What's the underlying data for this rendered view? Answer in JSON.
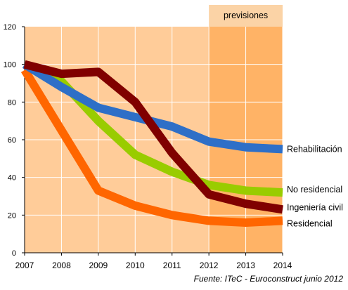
{
  "chart_data": {
    "type": "line",
    "x": [
      2007,
      2008,
      2009,
      2010,
      2011,
      2012,
      2013,
      2014
    ],
    "xticks": [
      "2007",
      "2008",
      "2009",
      "2010",
      "2011",
      "2012",
      "2013",
      "2014"
    ],
    "yticks": [
      "0",
      "20",
      "40",
      "60",
      "80",
      "100",
      "120"
    ],
    "ylim": [
      0,
      120
    ],
    "grid": true,
    "forecast": {
      "label": "previsiones",
      "from": 2012,
      "to": 2014
    },
    "source": "Fuente: ITeC - Euroconstruct junio 2012",
    "series": [
      {
        "name": "Rehabilitación",
        "color": "#2e6fc7",
        "values": [
          100,
          88,
          77,
          72,
          67,
          59,
          56,
          55
        ]
      },
      {
        "name": "No residencial",
        "color": "#99cc00",
        "values": [
          100,
          91,
          70,
          52,
          43,
          36,
          33,
          32
        ]
      },
      {
        "name": "Ingeniería civil",
        "color": "#800000",
        "values": [
          100,
          95,
          96,
          80,
          53,
          31,
          26,
          23
        ]
      },
      {
        "name": "Residencial",
        "color": "#ff6600",
        "values": [
          97,
          65,
          33,
          25,
          20,
          17,
          16,
          17
        ]
      }
    ],
    "colors": {
      "plot_bg": "#ffcc99",
      "forecast_bg": "#ffb366",
      "forecast_header": "#fbd3a6",
      "grid": "#ffffff",
      "axis": "#000000"
    }
  }
}
